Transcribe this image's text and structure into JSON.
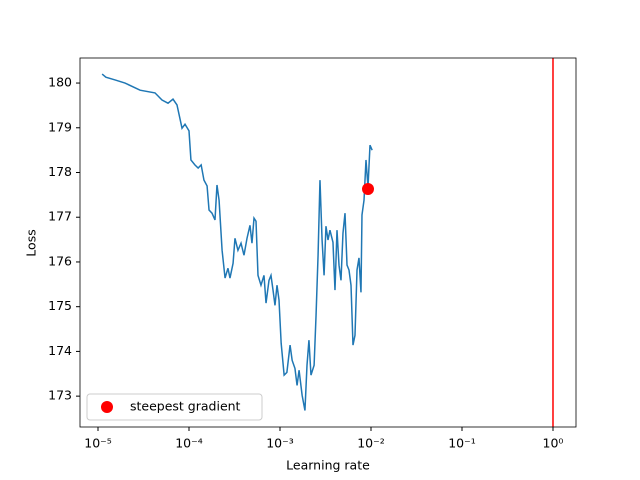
{
  "chart_data": {
    "type": "line",
    "xlabel": "Learning rate",
    "ylabel": "Loss",
    "xscale": "log",
    "xlim": [
      6.34e-06,
      1.79
    ],
    "ylim": [
      172.31,
      180.56
    ],
    "xticks": [
      {
        "value": 1e-05,
        "label": "10⁻⁵"
      },
      {
        "value": 0.0001,
        "label": "10⁻⁴"
      },
      {
        "value": 0.001,
        "label": "10⁻³"
      },
      {
        "value": 0.01,
        "label": "10⁻²"
      },
      {
        "value": 0.1,
        "label": "10⁻¹"
      },
      {
        "value": 1,
        "label": "10⁰"
      }
    ],
    "yticks": [
      173,
      174,
      175,
      176,
      177,
      178,
      179,
      180
    ],
    "series": [
      {
        "color": "#1f77b4",
        "x": [
          1.11e-05,
          1.22e-05,
          1.54e-05,
          1.98e-05,
          2.9e-05,
          4.23e-05,
          5.05e-05,
          5.88e-05,
          6.67e-05,
          7.38e-05,
          8.38e-05,
          9.04e-05,
          0.0001,
          0.000105,
          0.000116,
          0.000126,
          0.000136,
          0.000146,
          0.000158,
          0.000166,
          0.000179,
          0.000193,
          0.000203,
          0.000214,
          0.000231,
          0.000249,
          0.000268,
          0.000282,
          0.000305,
          0.00032,
          0.000345,
          0.000373,
          0.000402,
          0.000434,
          0.000468,
          0.000492,
          0.000518,
          0.000545,
          0.000573,
          0.000618,
          0.000667,
          0.000702,
          0.000757,
          0.000796,
          0.000838,
          0.000881,
          0.000927,
          0.000975,
          0.00103,
          0.00111,
          0.00119,
          0.00129,
          0.00136,
          0.00146,
          0.00154,
          0.00162,
          0.00175,
          0.00188,
          0.00198,
          0.00208,
          0.00219,
          0.00237,
          0.00249,
          0.00262,
          0.00275,
          0.0029,
          0.00305,
          0.0032,
          0.00337,
          0.00354,
          0.00382,
          0.00402,
          0.00423,
          0.00445,
          0.00468,
          0.00492,
          0.00518,
          0.00545,
          0.00573,
          0.00603,
          0.00634,
          0.00667,
          0.00702,
          0.00738,
          0.00776,
          0.00796,
          0.00838,
          0.00881,
          0.00927,
          0.00975,
          0.0103
        ],
        "values": [
          180.2,
          180.13,
          180.07,
          180.0,
          179.84,
          179.78,
          179.62,
          179.55,
          179.64,
          179.51,
          178.99,
          179.08,
          178.93,
          178.28,
          178.17,
          178.1,
          178.17,
          177.83,
          177.7,
          177.16,
          177.09,
          176.94,
          177.72,
          177.38,
          176.26,
          175.64,
          175.86,
          175.64,
          175.97,
          176.53,
          176.26,
          176.42,
          176.15,
          176.53,
          176.82,
          176.42,
          176.98,
          176.91,
          175.7,
          175.48,
          175.7,
          175.08,
          175.59,
          175.7,
          175.37,
          175.03,
          175.48,
          175.15,
          174.18,
          173.47,
          173.53,
          174.14,
          173.8,
          173.62,
          173.24,
          173.58,
          173.02,
          172.68,
          173.69,
          174.25,
          173.47,
          173.69,
          174.81,
          176.15,
          177.83,
          176.49,
          175.7,
          176.8,
          176.49,
          176.71,
          176.44,
          175.37,
          176.71,
          175.93,
          175.59,
          176.64,
          177.09,
          175.93,
          175.82,
          175.48,
          174.14,
          174.36,
          175.82,
          176.09,
          175.32,
          177.05,
          177.38,
          178.28,
          177.67,
          178.61,
          178.5
        ]
      }
    ],
    "points": [
      {
        "name": "steepest gradient",
        "color": "#ff0000",
        "x": 0.00927,
        "y": 177.63
      }
    ],
    "vline": {
      "x": 1,
      "color": "#ff0000"
    },
    "legend": "lower left"
  }
}
